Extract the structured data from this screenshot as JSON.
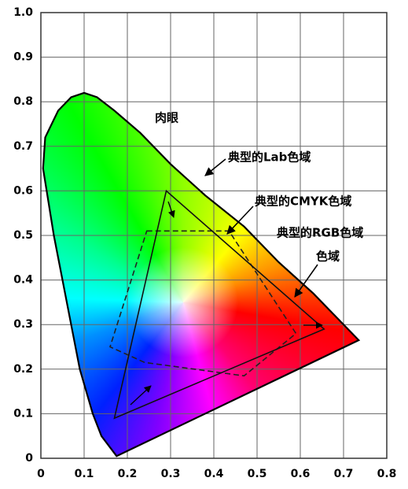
{
  "chart_data": {
    "type": "chromaticity",
    "xlim": [
      0,
      0.8
    ],
    "ylim": [
      0,
      1.0
    ],
    "xticks": [
      0,
      0.1,
      0.2,
      0.3,
      0.4,
      0.5,
      0.6,
      0.7,
      0.8
    ],
    "yticks": [
      0,
      0.1,
      0.2,
      0.3,
      0.4,
      0.5,
      0.6,
      0.7,
      0.8,
      0.9,
      {
        "value": 1.0,
        "label": "1.0"
      }
    ],
    "grid": true,
    "locus": {
      "x": [
        0.175,
        0.14,
        0.12,
        0.09,
        0.06,
        0.03,
        0.005,
        0.01,
        0.04,
        0.07,
        0.1,
        0.13,
        0.17,
        0.23,
        0.3,
        0.38,
        0.47,
        0.55,
        0.63,
        0.735
      ],
      "y": [
        0.005,
        0.05,
        0.1,
        0.2,
        0.35,
        0.5,
        0.65,
        0.72,
        0.78,
        0.81,
        0.82,
        0.81,
        0.78,
        0.73,
        0.66,
        0.59,
        0.52,
        0.44,
        0.37,
        0.265
      ]
    },
    "rgb": {
      "x": [
        0.29,
        0.655,
        0.17
      ],
      "y": [
        0.6,
        0.29,
        0.09
      ]
    },
    "cmyk": {
      "x": [
        0.245,
        0.435,
        0.59,
        0.47,
        0.24,
        0.16
      ],
      "y": [
        0.51,
        0.51,
        0.28,
        0.185,
        0.215,
        0.25
      ]
    },
    "annotations": [
      "肉眼",
      "典型的Lab色域",
      "典型的CMYK色域",
      "典型的RGB色域",
      "色域"
    ]
  }
}
